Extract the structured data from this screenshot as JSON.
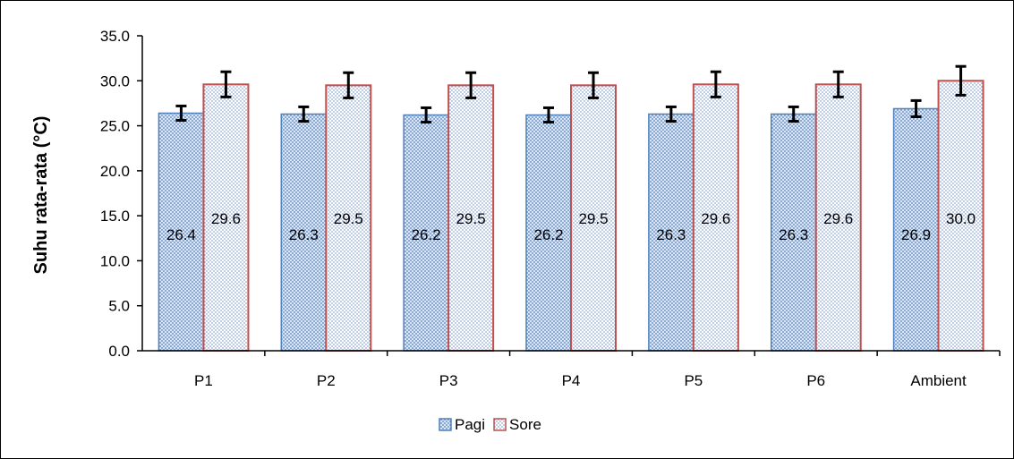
{
  "chart_data": {
    "type": "bar",
    "title": "",
    "xlabel": "",
    "ylabel": "Suhu rata-rata (°C)",
    "ylim": [
      0,
      35
    ],
    "ytick_step": 5,
    "ytick_labels": [
      "0.0",
      "5.0",
      "10.0",
      "15.0",
      "20.0",
      "25.0",
      "30.0",
      "35.0"
    ],
    "categories": [
      "P1",
      "P2",
      "P3",
      "P4",
      "P5",
      "P6",
      "Ambient"
    ],
    "series": [
      {
        "name": "Pagi",
        "values": [
          26.4,
          26.3,
          26.2,
          26.2,
          26.3,
          26.3,
          26.9
        ],
        "labels": [
          "26.4",
          "26.3",
          "26.2",
          "26.2",
          "26.3",
          "26.3",
          "26.9"
        ],
        "error": [
          0.8,
          0.8,
          0.8,
          0.8,
          0.8,
          0.8,
          0.9
        ],
        "color": "#4f81bd",
        "fill": "dotted"
      },
      {
        "name": "Sore",
        "values": [
          29.6,
          29.5,
          29.5,
          29.5,
          29.6,
          29.6,
          30.0
        ],
        "labels": [
          "29.6",
          "29.5",
          "29.5",
          "29.5",
          "29.6",
          "29.6",
          "30.0"
        ],
        "error": [
          1.4,
          1.4,
          1.4,
          1.4,
          1.4,
          1.4,
          1.6
        ],
        "color": "#c0504d",
        "fill": "dotted"
      }
    ],
    "grid": false,
    "legend": "bottom-center"
  }
}
